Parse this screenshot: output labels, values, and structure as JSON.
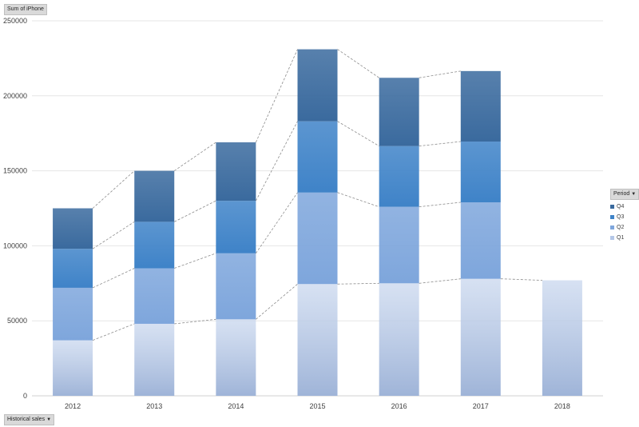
{
  "buttons": {
    "value_field": "Sum of iPhone",
    "legend_field": "Period",
    "axis_field": "Historical sales",
    "dropdown_icon": "dropdown-arrow-icon"
  },
  "colors": {
    "Q1": "#b4c7e7",
    "Q2": "#7ea6dc",
    "Q3": "#3f83c8",
    "Q4": "#3a6a9e",
    "gridline": "#e6e6e6",
    "connector": "#8c8c8c"
  },
  "chart_data": {
    "type": "bar",
    "stacked": true,
    "categories": [
      "2012",
      "2013",
      "2014",
      "2015",
      "2016",
      "2017",
      "2018"
    ],
    "series": [
      {
        "name": "Q1",
        "values": [
          37000,
          48000,
          51000,
          74500,
          75000,
          78000,
          77000
        ]
      },
      {
        "name": "Q2",
        "values": [
          35000,
          37000,
          44000,
          61000,
          51000,
          51000,
          null
        ]
      },
      {
        "name": "Q3",
        "values": [
          26000,
          31000,
          35000,
          47500,
          40500,
          40500,
          null
        ]
      },
      {
        "name": "Q4",
        "values": [
          27000,
          34000,
          39000,
          48000,
          45500,
          47000,
          null
        ]
      }
    ],
    "ylim": [
      0,
      250000
    ],
    "yticks": [
      "0",
      "50000",
      "100000",
      "150000",
      "200000",
      "250000"
    ],
    "title": "",
    "xlabel": "",
    "ylabel": "",
    "grid": true,
    "legend_position": "right",
    "legend": [
      "Q4",
      "Q3",
      "Q2",
      "Q1"
    ],
    "series_lines": true
  }
}
